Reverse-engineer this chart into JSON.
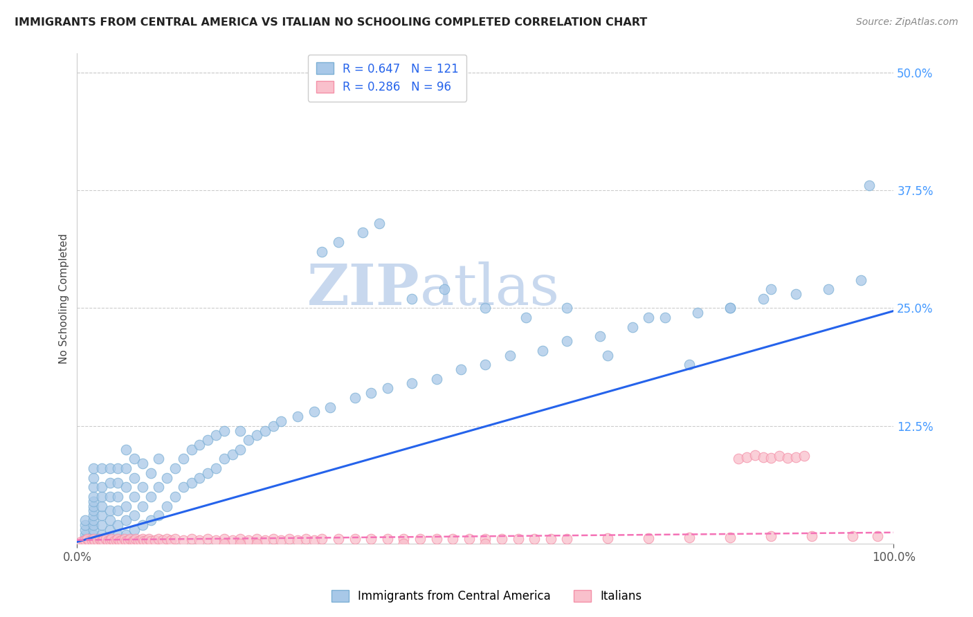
{
  "title": "IMMIGRANTS FROM CENTRAL AMERICA VS ITALIAN NO SCHOOLING COMPLETED CORRELATION CHART",
  "source": "Source: ZipAtlas.com",
  "ylabel": "No Schooling Completed",
  "legend_blue_r": "R = 0.647",
  "legend_blue_n": "N = 121",
  "legend_pink_r": "R = 0.286",
  "legend_pink_n": "N = 96",
  "legend_label_blue": "Immigrants from Central America",
  "legend_label_pink": "Italians",
  "blue_scatter_color": "#a8c8e8",
  "blue_scatter_edge": "#7bafd4",
  "pink_scatter_color": "#f9c0cc",
  "pink_scatter_edge": "#f490a8",
  "line_blue": "#2563eb",
  "line_pink": "#f472b6",
  "watermark_zip": "ZIP",
  "watermark_atlas": "atlas",
  "background_color": "#ffffff",
  "grid_color": "#cccccc",
  "ytick_color": "#4499ff",
  "blue_x": [
    0.01,
    0.01,
    0.01,
    0.01,
    0.01,
    0.02,
    0.02,
    0.02,
    0.02,
    0.02,
    0.02,
    0.02,
    0.02,
    0.02,
    0.02,
    0.02,
    0.02,
    0.02,
    0.03,
    0.03,
    0.03,
    0.03,
    0.03,
    0.03,
    0.03,
    0.03,
    0.04,
    0.04,
    0.04,
    0.04,
    0.04,
    0.04,
    0.04,
    0.05,
    0.05,
    0.05,
    0.05,
    0.05,
    0.05,
    0.06,
    0.06,
    0.06,
    0.06,
    0.06,
    0.06,
    0.07,
    0.07,
    0.07,
    0.07,
    0.07,
    0.08,
    0.08,
    0.08,
    0.08,
    0.09,
    0.09,
    0.09,
    0.1,
    0.1,
    0.1,
    0.11,
    0.11,
    0.12,
    0.12,
    0.13,
    0.13,
    0.14,
    0.14,
    0.15,
    0.15,
    0.16,
    0.16,
    0.17,
    0.17,
    0.18,
    0.18,
    0.19,
    0.2,
    0.2,
    0.21,
    0.22,
    0.23,
    0.24,
    0.25,
    0.27,
    0.29,
    0.31,
    0.34,
    0.36,
    0.38,
    0.41,
    0.44,
    0.47,
    0.5,
    0.53,
    0.57,
    0.6,
    0.64,
    0.68,
    0.72,
    0.76,
    0.8,
    0.84,
    0.88,
    0.92,
    0.96,
    0.3,
    0.32,
    0.35,
    0.37,
    0.41,
    0.45,
    0.5,
    0.55,
    0.6,
    0.65,
    0.7,
    0.75,
    0.8,
    0.85,
    0.97
  ],
  "blue_y": [
    0.005,
    0.01,
    0.015,
    0.02,
    0.025,
    0.005,
    0.01,
    0.015,
    0.02,
    0.025,
    0.03,
    0.035,
    0.04,
    0.045,
    0.05,
    0.06,
    0.07,
    0.08,
    0.005,
    0.01,
    0.02,
    0.03,
    0.04,
    0.05,
    0.06,
    0.08,
    0.005,
    0.015,
    0.025,
    0.035,
    0.05,
    0.065,
    0.08,
    0.01,
    0.02,
    0.035,
    0.05,
    0.065,
    0.08,
    0.01,
    0.025,
    0.04,
    0.06,
    0.08,
    0.1,
    0.015,
    0.03,
    0.05,
    0.07,
    0.09,
    0.02,
    0.04,
    0.06,
    0.085,
    0.025,
    0.05,
    0.075,
    0.03,
    0.06,
    0.09,
    0.04,
    0.07,
    0.05,
    0.08,
    0.06,
    0.09,
    0.065,
    0.1,
    0.07,
    0.105,
    0.075,
    0.11,
    0.08,
    0.115,
    0.09,
    0.12,
    0.095,
    0.1,
    0.12,
    0.11,
    0.115,
    0.12,
    0.125,
    0.13,
    0.135,
    0.14,
    0.145,
    0.155,
    0.16,
    0.165,
    0.17,
    0.175,
    0.185,
    0.19,
    0.2,
    0.205,
    0.215,
    0.22,
    0.23,
    0.24,
    0.245,
    0.25,
    0.26,
    0.265,
    0.27,
    0.28,
    0.31,
    0.32,
    0.33,
    0.34,
    0.26,
    0.27,
    0.25,
    0.24,
    0.25,
    0.2,
    0.24,
    0.19,
    0.25,
    0.27,
    0.38
  ],
  "pink_x": [
    0.005,
    0.008,
    0.01,
    0.012,
    0.015,
    0.018,
    0.02,
    0.022,
    0.025,
    0.028,
    0.03,
    0.032,
    0.035,
    0.038,
    0.04,
    0.042,
    0.045,
    0.048,
    0.05,
    0.052,
    0.055,
    0.058,
    0.06,
    0.062,
    0.065,
    0.068,
    0.07,
    0.072,
    0.075,
    0.078,
    0.08,
    0.082,
    0.085,
    0.088,
    0.09,
    0.095,
    0.1,
    0.105,
    0.11,
    0.115,
    0.12,
    0.13,
    0.14,
    0.15,
    0.16,
    0.17,
    0.18,
    0.19,
    0.2,
    0.21,
    0.22,
    0.23,
    0.24,
    0.25,
    0.26,
    0.27,
    0.28,
    0.29,
    0.3,
    0.32,
    0.34,
    0.36,
    0.38,
    0.4,
    0.42,
    0.44,
    0.46,
    0.48,
    0.5,
    0.52,
    0.54,
    0.56,
    0.58,
    0.6,
    0.65,
    0.7,
    0.75,
    0.8,
    0.85,
    0.9,
    0.95,
    0.98,
    0.18,
    0.2,
    0.22,
    0.4,
    0.5,
    0.81,
    0.82,
    0.83,
    0.84,
    0.85,
    0.86,
    0.87,
    0.88,
    0.89
  ],
  "pink_y": [
    0.002,
    0.003,
    0.004,
    0.005,
    0.003,
    0.004,
    0.005,
    0.003,
    0.004,
    0.005,
    0.003,
    0.004,
    0.005,
    0.003,
    0.004,
    0.005,
    0.003,
    0.004,
    0.005,
    0.003,
    0.004,
    0.005,
    0.003,
    0.004,
    0.005,
    0.003,
    0.004,
    0.005,
    0.003,
    0.004,
    0.005,
    0.003,
    0.004,
    0.005,
    0.003,
    0.004,
    0.005,
    0.004,
    0.005,
    0.004,
    0.005,
    0.004,
    0.005,
    0.004,
    0.005,
    0.004,
    0.005,
    0.004,
    0.005,
    0.004,
    0.005,
    0.004,
    0.005,
    0.004,
    0.005,
    0.004,
    0.005,
    0.004,
    0.005,
    0.005,
    0.005,
    0.005,
    0.005,
    0.005,
    0.005,
    0.005,
    0.005,
    0.005,
    0.005,
    0.005,
    0.005,
    0.005,
    0.005,
    0.005,
    0.006,
    0.006,
    0.007,
    0.007,
    0.008,
    0.008,
    0.008,
    0.008,
    0.0,
    0.0,
    0.0,
    0.0,
    0.0,
    0.09,
    0.092,
    0.094,
    0.092,
    0.091,
    0.093,
    0.091,
    0.092,
    0.093
  ]
}
